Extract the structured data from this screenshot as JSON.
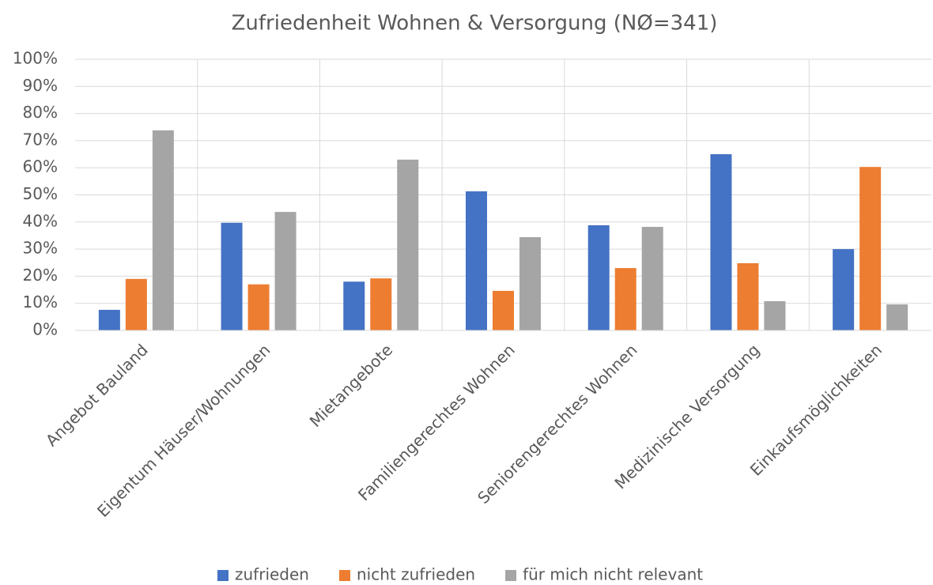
{
  "chart_data": {
    "type": "bar",
    "title": "Zufriedenheit Wohnen & Versorgung (NØ=341)",
    "categories": [
      "Angebot Bauland",
      "Eigentum Häuser/Wohnungen",
      "Mietangebote",
      "Familiengerechtes Wohnen",
      "Seniorengerechtes Wohnen",
      "Medizinische Versorgung",
      "Einkaufsmöglichkeiten"
    ],
    "series": [
      {
        "name": "zufrieden",
        "color": "#4472c4",
        "values": [
          7.6,
          39.7,
          18,
          51.3,
          38.8,
          65,
          30
        ]
      },
      {
        "name": "nicht zufrieden",
        "color": "#ed7d31",
        "values": [
          19,
          17,
          19.2,
          14.6,
          23,
          24.8,
          60.3
        ]
      },
      {
        "name": "für mich nicht relevant",
        "color": "#a5a5a5",
        "values": [
          73.8,
          43.7,
          63,
          34.4,
          38.2,
          10.8,
          9.6
        ]
      }
    ],
    "ylim": [
      0,
      100
    ],
    "yticks": [
      {
        "value": 0,
        "label": "0%"
      },
      {
        "value": 10,
        "label": "10%"
      },
      {
        "value": 20,
        "label": "20%"
      },
      {
        "value": 30,
        "label": "30%"
      },
      {
        "value": 40,
        "label": "40%"
      },
      {
        "value": 50,
        "label": "50%"
      },
      {
        "value": 60,
        "label": "60%"
      },
      {
        "value": 70,
        "label": "70%"
      },
      {
        "value": 80,
        "label": "80%"
      },
      {
        "value": 90,
        "label": "90%"
      },
      {
        "value": 100,
        "label": "100%"
      }
    ],
    "grid": true,
    "legend": "bottom"
  }
}
